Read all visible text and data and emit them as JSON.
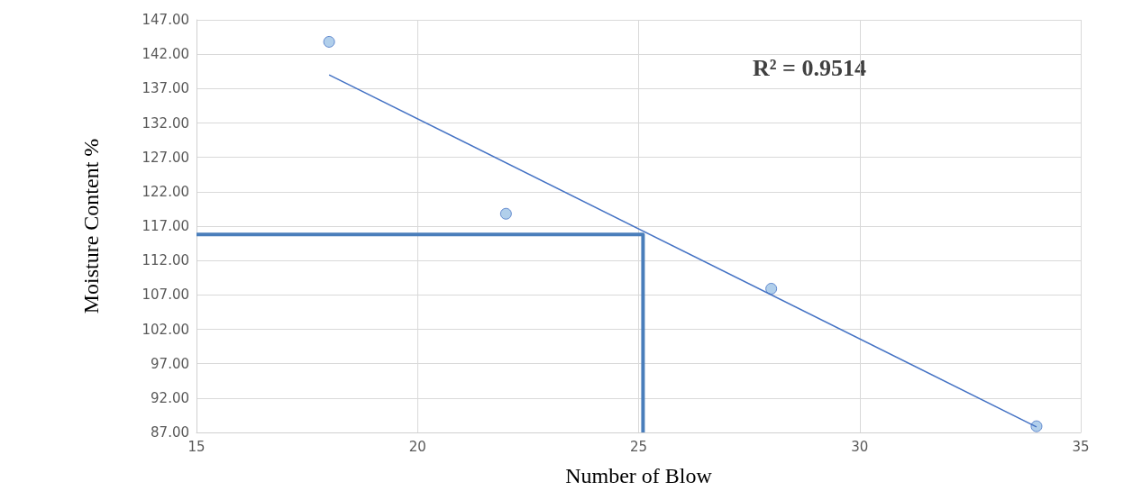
{
  "chart_data": {
    "type": "scatter",
    "xlabel": "Number of Blow",
    "ylabel": "Moisture Content %",
    "annotations": [
      "R² = 0.9514"
    ],
    "series": [
      {
        "marker": "circle",
        "color": "#9dc3e6",
        "x": [
          18,
          22,
          28,
          34
        ],
        "values": [
          143.8,
          118.8,
          107.9,
          87.9
        ]
      },
      {
        "type": "line",
        "color": "#4472c4",
        "x": [
          18,
          34
        ],
        "values": [
          139.0,
          87.8
        ]
      },
      {
        "type": "line",
        "color": "#4a7ebb",
        "x": [
          15,
          25.1,
          25.1
        ],
        "values": [
          115.8,
          115.8,
          87
        ]
      }
    ],
    "xlim": [
      15,
      35
    ],
    "xticks": [
      15,
      20,
      25,
      30,
      35
    ],
    "ylim": [
      87,
      147
    ],
    "yticks": [
      {
        "value": 87,
        "label": "87.00"
      },
      {
        "value": 92,
        "label": "92.00"
      },
      {
        "value": 97,
        "label": "97.00"
      },
      {
        "value": 102,
        "label": "102.00"
      },
      {
        "value": 107,
        "label": "107.00"
      },
      {
        "value": 112,
        "label": "112.00"
      },
      {
        "value": 117,
        "label": "117.00"
      },
      {
        "value": 122,
        "label": "122.00"
      },
      {
        "value": 127,
        "label": "127.00"
      },
      {
        "value": 132,
        "label": "132.00"
      },
      {
        "value": 137,
        "label": "137.00"
      },
      {
        "value": 142,
        "label": "142.00"
      },
      {
        "value": 147,
        "label": "147.00"
      }
    ],
    "grid": true
  }
}
